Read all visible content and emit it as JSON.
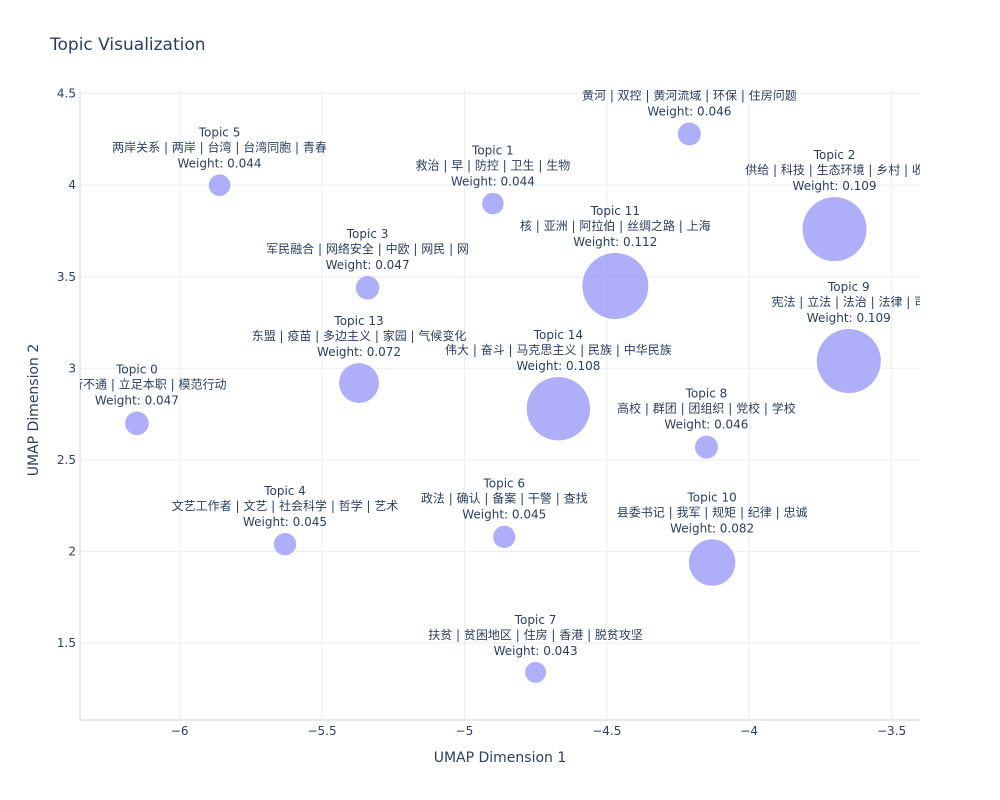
{
  "chart_data": {
    "type": "scatter",
    "title": "Topic Visualization",
    "xlabel": "UMAP Dimension 1",
    "ylabel": "UMAP Dimension 2",
    "xlim": [
      -6.35,
      -3.4
    ],
    "ylim": [
      1.08,
      4.52
    ],
    "xticks": [
      -6,
      -5.5,
      -5,
      -4.5,
      -4,
      -3.5
    ],
    "xtick_labels": [
      "−6",
      "−5.5",
      "−5",
      "−4.5",
      "−4",
      "−3.5"
    ],
    "yticks": [
      1.5,
      2,
      2.5,
      3,
      3.5,
      4,
      4.5
    ],
    "ytick_labels": [
      "1.5",
      "2",
      "2.5",
      "3",
      "3.5",
      "4",
      "4.5"
    ],
    "grid": true,
    "marker_color": "#9b9bf7",
    "points": [
      {
        "x": -6.15,
        "y": 2.7,
        "weight": 0.047,
        "topic": "Topic 0",
        "words": "二 | 行不通 | 立足本职 | 模范行动",
        "weight_label": "Weight: 0.047"
      },
      {
        "x": -4.9,
        "y": 3.9,
        "weight": 0.044,
        "topic": "Topic 1",
        "words": "救治 | 早 | 防控 | 卫生 | 生物",
        "weight_label": "Weight: 0.044"
      },
      {
        "x": -3.7,
        "y": 3.76,
        "weight": 0.109,
        "topic": "Topic 2",
        "words": "供给 | 科技 | 生态环境 | 乡村 | 收",
        "weight_label": "Weight: 0.109"
      },
      {
        "x": -5.34,
        "y": 3.44,
        "weight": 0.047,
        "topic": "Topic 3",
        "words": "军民融合 | 网络安全 | 中欧 | 网民 | 网",
        "weight_label": "Weight: 0.047"
      },
      {
        "x": -5.63,
        "y": 2.04,
        "weight": 0.045,
        "topic": "Topic 4",
        "words": "文艺工作者 | 文艺 | 社会科学 | 哲学 | 艺术",
        "weight_label": "Weight: 0.045"
      },
      {
        "x": -5.86,
        "y": 4.0,
        "weight": 0.044,
        "topic": "Topic 5",
        "words": "两岸关系 | 两岸 | 台湾 | 台湾同胞 | 青春",
        "weight_label": "Weight: 0.044"
      },
      {
        "x": -4.86,
        "y": 2.08,
        "weight": 0.045,
        "topic": "Topic 6",
        "words": "政法 | 确认 | 备案 | 干警 | 查找",
        "weight_label": "Weight: 0.045"
      },
      {
        "x": -4.75,
        "y": 1.34,
        "weight": 0.043,
        "topic": "Topic 7",
        "words": "扶贫 | 贫困地区 | 住房 | 香港 | 脱贫攻坚",
        "weight_label": "Weight: 0.043"
      },
      {
        "x": -4.15,
        "y": 2.57,
        "weight": 0.046,
        "topic": "Topic 8",
        "words": "高校 | 群团 | 团组织 | 党校 | 学校",
        "weight_label": "Weight: 0.046"
      },
      {
        "x": -3.65,
        "y": 3.04,
        "weight": 0.109,
        "topic": "Topic 9",
        "words": "宪法 | 立法 | 法治 | 法律 | 司",
        "weight_label": "Weight: 0.109"
      },
      {
        "x": -4.13,
        "y": 1.94,
        "weight": 0.082,
        "topic": "Topic 10",
        "words": "县委书记 | 我军 | 规矩 | 纪律 | 忠诚",
        "weight_label": "Weight: 0.082"
      },
      {
        "x": -4.47,
        "y": 3.45,
        "weight": 0.112,
        "topic": "Topic 11",
        "words": "核 | 亚洲 | 阿拉伯 | 丝绸之路 | 上海",
        "weight_label": "Weight: 0.112"
      },
      {
        "x": -4.21,
        "y": 4.28,
        "weight": 0.046,
        "topic": "",
        "words": "黄河 | 双控 | 黄河流域 | 环保 | 住房问题",
        "weight_label": "Weight: 0.046"
      },
      {
        "x": -5.37,
        "y": 2.92,
        "weight": 0.072,
        "topic": "Topic 13",
        "words": "东盟 | 疫苗 | 多边主义 | 家园 | 气候变化",
        "weight_label": "Weight: 0.072"
      },
      {
        "x": -4.67,
        "y": 2.78,
        "weight": 0.108,
        "topic": "Topic 14",
        "words": "伟大 | 奋斗 | 马克思主义 | 民族 | 中华民族",
        "weight_label": "Weight: 0.108"
      }
    ]
  }
}
